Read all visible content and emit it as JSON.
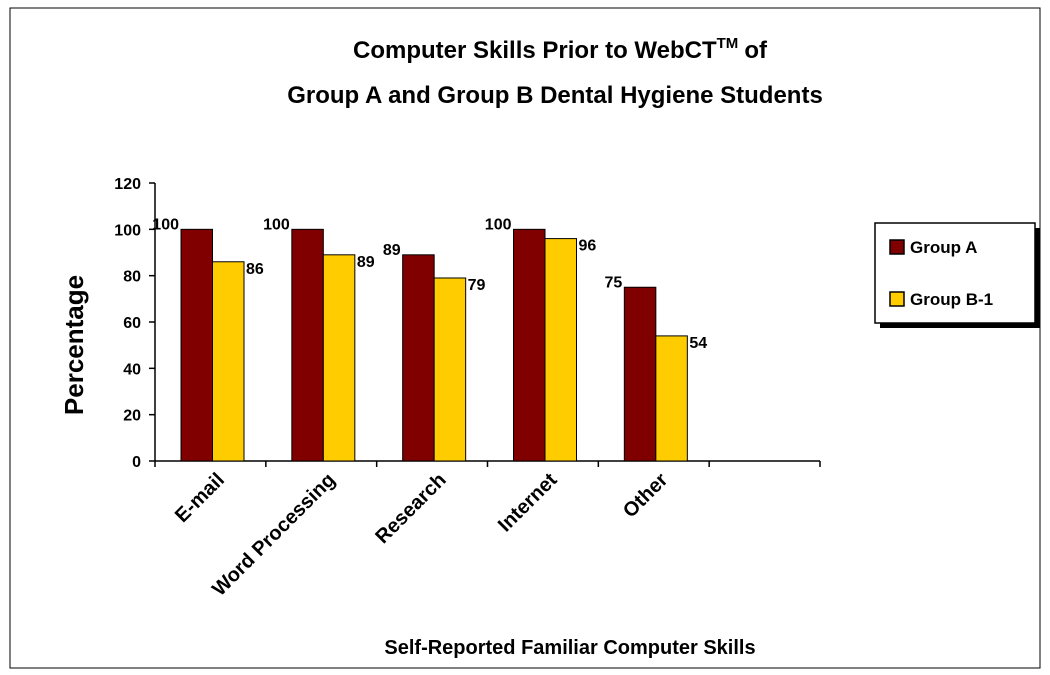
{
  "chart_data": {
    "type": "bar",
    "title": "Computer Skills Prior to WebCT",
    "title_superscript": "TM",
    "title_tail": "of",
    "subtitle": "Group A and Group B Dental Hygiene Students",
    "xlabel": "Self-Reported Familiar Computer Skills",
    "ylabel": "Percentage",
    "categories": [
      "E-mail",
      "Word Processing",
      "Research",
      "Internet",
      "Other",
      null
    ],
    "series": [
      {
        "name": "Group A",
        "color": "#800000",
        "values": [
          100,
          100,
          89,
          100,
          75,
          null
        ]
      },
      {
        "name": "Group B-1",
        "color": "#ffcc00",
        "values": [
          86,
          89,
          79,
          96,
          54,
          null
        ]
      }
    ],
    "ylim": [
      0,
      120
    ],
    "yticks": [
      0,
      20,
      40,
      60,
      80,
      100,
      120
    ],
    "legend": "right"
  }
}
